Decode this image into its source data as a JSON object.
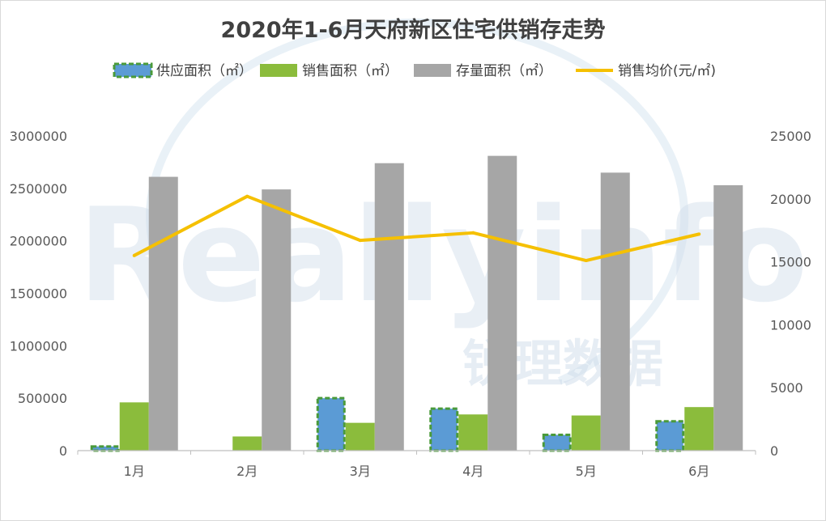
{
  "chart_data": {
    "type": "bar",
    "title": "2020年1-6月天府新区住宅供销存走势",
    "categories": [
      "1月",
      "2月",
      "3月",
      "4月",
      "5月",
      "6月"
    ],
    "series": [
      {
        "name": "供应面积（㎡）",
        "type": "bar",
        "axis": "left",
        "color": "#5b9bd5",
        "border": "#4a9a3a",
        "values": [
          40000,
          0,
          500000,
          400000,
          150000,
          280000
        ]
      },
      {
        "name": "销售面积（㎡）",
        "type": "bar",
        "axis": "left",
        "color": "#8bbc3c",
        "values": [
          460000,
          135000,
          265000,
          345000,
          335000,
          415000
        ]
      },
      {
        "name": "存量面积（㎡）",
        "type": "bar",
        "axis": "left",
        "color": "#a6a6a6",
        "values": [
          2610000,
          2490000,
          2740000,
          2810000,
          2650000,
          2530000
        ]
      },
      {
        "name": "销售均价(元/㎡)",
        "type": "line",
        "axis": "right",
        "color": "#f5c000",
        "values": [
          15500,
          20200,
          16700,
          17300,
          15100,
          17200
        ]
      }
    ],
    "ylim": [
      0,
      3000000
    ],
    "y2lim": [
      0,
      25000
    ],
    "yticks": [
      "0",
      "500000",
      "1000000",
      "1500000",
      "2000000",
      "2500000",
      "3000000"
    ],
    "y2ticks": [
      "0",
      "5000",
      "10000",
      "15000",
      "20000",
      "25000"
    ],
    "legend_position": "top",
    "grid": false,
    "watermark": {
      "text": "Reallyinfo",
      "text_cn": "锐理数据"
    }
  }
}
